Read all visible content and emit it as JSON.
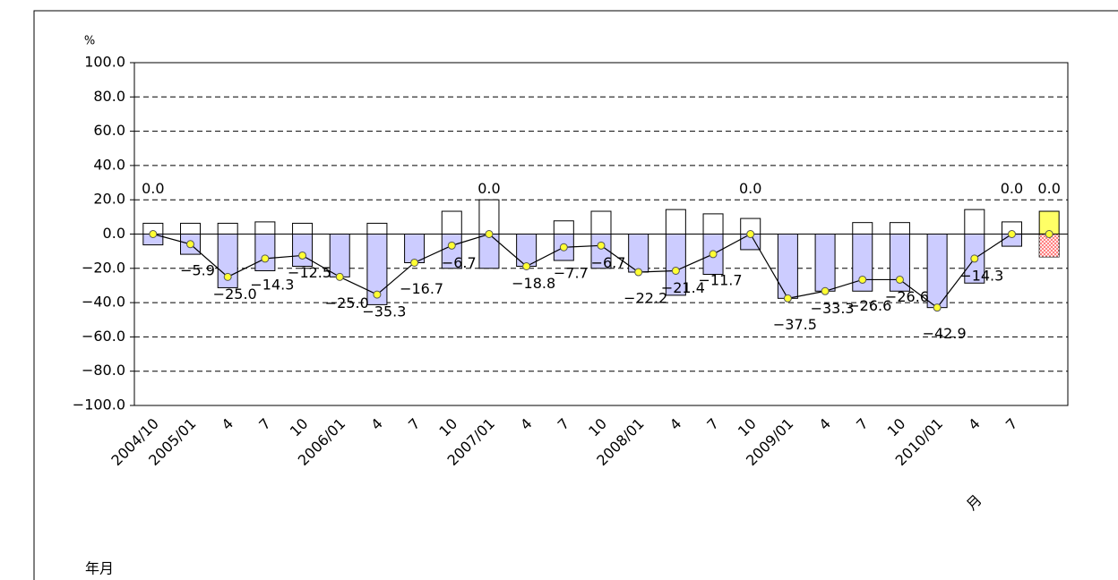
{
  "chart_data": {
    "type": "bar-line",
    "y_unit": "%",
    "x_label": "年月",
    "month_label": "月",
    "categories": [
      "2004/10",
      "2005/01",
      "4",
      "7",
      "10",
      "2006/01",
      "4",
      "7",
      "10",
      "2007/01",
      "4",
      "7",
      "10",
      "2008/01",
      "4",
      "7",
      "10",
      "2009/01",
      "4",
      "7",
      "10",
      "2010/01",
      "4",
      "7",
      null
    ],
    "ylim": [
      -100,
      100
    ],
    "yticks": [
      {
        "value": 100,
        "label": "100.0"
      },
      {
        "value": 80,
        "label": "80.0"
      },
      {
        "value": 60,
        "label": "60.0"
      },
      {
        "value": 40,
        "label": "40.0"
      },
      {
        "value": 20,
        "label": "20.0"
      },
      {
        "value": 0,
        "label": "0.0"
      },
      {
        "value": -20,
        "label": "−20.0"
      },
      {
        "value": -40,
        "label": "−40.0"
      },
      {
        "value": -60,
        "label": "−60.0"
      },
      {
        "value": -80,
        "label": "−80.0"
      },
      {
        "value": -100,
        "label": "−100.0"
      }
    ],
    "grid": true,
    "bar_series": [
      {
        "colors": [
          "#ffffff",
          "#ffffff",
          "#ffffff",
          "#ffffff",
          "#ffffff",
          "#ffffff",
          "#ffffff",
          "#ffffff",
          "#ffffff",
          "#ffffff",
          "#ffffff",
          "#ffffff",
          "#ffffff",
          "#ffffff",
          "#ffffff",
          "#ffffff",
          "#ffffff",
          "#ffffff",
          "#ffffff",
          "#ffffff",
          "#ffffff",
          "#ffffff",
          "#ffffff",
          "#ffffff",
          "#ffff66"
        ],
        "values": [
          6.3,
          6.3,
          6.3,
          7.1,
          6.3,
          0,
          6.3,
          0,
          13.3,
          20,
          0,
          7.7,
          13.3,
          0,
          14.3,
          11.8,
          9.1,
          0,
          0,
          6.7,
          6.7,
          0,
          14.3,
          7.1,
          13.3
        ]
      },
      {
        "colors": [
          "#ccccff",
          "#ccccff",
          "#ccccff",
          "#ccccff",
          "#ccccff",
          "#ccccff",
          "#ccccff",
          "#ccccff",
          "#ccccff",
          "#ccccff",
          "#ccccff",
          "#ccccff",
          "#ccccff",
          "#ccccff",
          "#ccccff",
          "#ccccff",
          "#ccccff",
          "#ccccff",
          "#ccccff",
          "#ccccff",
          "#ccccff",
          "#ccccff",
          "#ccccff",
          "#ccccff",
          "#ff6666"
        ],
        "values": [
          -6.3,
          -11.8,
          -31.3,
          -21.4,
          -18.8,
          -25,
          -41.2,
          -16.7,
          -20,
          -20,
          -18.8,
          -15.4,
          -20,
          -22.2,
          -35.7,
          -23.5,
          -9.1,
          -37.5,
          -33.3,
          -33.3,
          -33.3,
          -42.9,
          -28.6,
          -7.1,
          -13.3
        ]
      }
    ],
    "line": {
      "color": "#000000",
      "marker_color": "#ffff33",
      "values": [
        0,
        -5.9,
        -25,
        -14.3,
        -12.5,
        -25,
        -35.3,
        -16.7,
        -6.7,
        0,
        -18.8,
        -7.7,
        -6.7,
        -22.2,
        -21.4,
        -11.7,
        0,
        -37.5,
        -33.3,
        -26.6,
        -26.6,
        -42.9,
        -14.3,
        0,
        0
      ],
      "value_labels": [
        "0.0",
        "−5.9",
        "−25.0",
        "−14.3",
        "−12.5",
        "−25.0",
        "−35.3",
        "−16.7",
        "−6.7",
        "0.0",
        "−18.8",
        "−7.7",
        "−6.7",
        "−22.2",
        "−21.4",
        "−11.7",
        "0.0",
        "−37.5",
        "−33.3",
        "−26.6",
        "−26.6",
        "−42.9",
        "−14.3",
        "0.0",
        "0.0"
      ]
    }
  }
}
